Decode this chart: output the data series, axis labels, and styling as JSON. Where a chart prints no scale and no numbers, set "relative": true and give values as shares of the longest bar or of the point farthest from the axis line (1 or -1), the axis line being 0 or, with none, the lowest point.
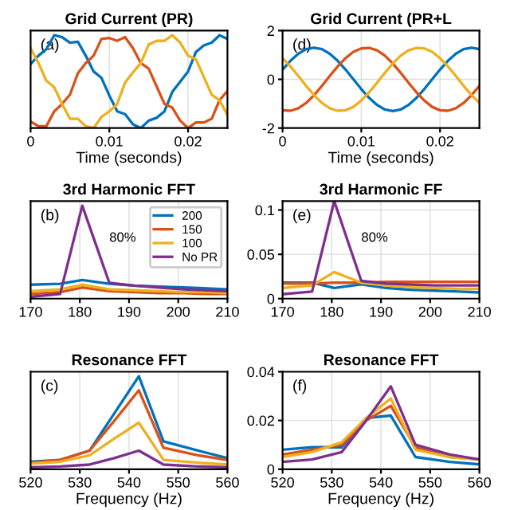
{
  "chart_data": [
    {
      "type": "line",
      "title": "Grid Current (PR)",
      "xlabel": "Time (seconds)",
      "relative": true,
      "annotations": [
        "(a)"
      ],
      "grid": true,
      "x": [
        0,
        0.001,
        0.002,
        0.003,
        0.004,
        0.005,
        0.006,
        0.007,
        0.008,
        0.009,
        0.01,
        0.011,
        0.012,
        0.013,
        0.014,
        0.015,
        0.016,
        0.017,
        0.018,
        0.019,
        0.02,
        0.021,
        0.022,
        0.023,
        0.024,
        0.025
      ],
      "xlim": [
        0,
        0.025
      ],
      "xticks": [
        0,
        0.01,
        0.02
      ],
      "series": [
        {
          "color": "#0072bd",
          "values": [
            0.69,
            0.78,
            0.85,
            1.0,
            0.98,
            0.92,
            0.93,
            0.78,
            0.61,
            0.54,
            0.35,
            0.18,
            0.15,
            0.04,
            0.0,
            0.08,
            0.11,
            0.18,
            0.39,
            0.5,
            0.61,
            0.82,
            0.89,
            0.92,
            1.0,
            0.96
          ]
        },
        {
          "color": "#d95319",
          "values": [
            0.07,
            0.02,
            0.02,
            0.18,
            0.26,
            0.36,
            0.59,
            0.7,
            0.78,
            0.96,
            0.97,
            0.94,
            0.98,
            0.86,
            0.7,
            0.64,
            0.45,
            0.26,
            0.22,
            0.08,
            0.0,
            0.06,
            0.06,
            0.1,
            0.3,
            0.4
          ]
        },
        {
          "color": "#edb120",
          "values": [
            0.86,
            0.7,
            0.51,
            0.44,
            0.26,
            0.1,
            0.1,
            0.02,
            0.0,
            0.12,
            0.18,
            0.26,
            0.49,
            0.6,
            0.7,
            0.9,
            0.94,
            0.94,
            1.0,
            0.92,
            0.78,
            0.74,
            0.55,
            0.36,
            0.3,
            0.14
          ]
        }
      ]
    },
    {
      "type": "line",
      "title": "Grid Current (PR+L",
      "xlabel": "Time (seconds)",
      "annotations": [
        "(d)"
      ],
      "grid": true,
      "x": [
        0,
        0.001,
        0.002,
        0.003,
        0.004,
        0.005,
        0.006,
        0.007,
        0.008,
        0.009,
        0.01,
        0.011,
        0.012,
        0.013,
        0.014,
        0.015,
        0.016,
        0.017,
        0.018,
        0.019,
        0.02,
        0.021,
        0.022,
        0.023,
        0.024,
        0.025
      ],
      "xlim": [
        0,
        0.025
      ],
      "xticks": [
        0,
        0.01,
        0.02
      ],
      "ylim": [
        -2,
        2
      ],
      "yticks": [
        -2,
        0,
        2
      ],
      "series": [
        {
          "color": "#0072bd",
          "values": [
            0.4,
            0.76,
            1.05,
            1.24,
            1.3,
            1.24,
            1.05,
            0.76,
            0.4,
            0,
            -0.4,
            -0.76,
            -1.05,
            -1.24,
            -1.3,
            -1.24,
            -1.05,
            -0.76,
            -0.4,
            0,
            0.4,
            0.76,
            1.05,
            1.24,
            1.3,
            1.24
          ]
        },
        {
          "color": "#d95319",
          "values": [
            -1.27,
            -1.29,
            -1.19,
            -0.97,
            -0.65,
            -0.27,
            0.14,
            0.53,
            0.87,
            1.13,
            1.27,
            1.29,
            1.19,
            0.97,
            0.65,
            0.27,
            -0.14,
            -0.53,
            -0.87,
            -1.13,
            -1.27,
            -1.29,
            -1.19,
            -0.97,
            -0.65,
            -0.27
          ]
        },
        {
          "color": "#edb120",
          "values": [
            0.87,
            0.53,
            0.14,
            -0.27,
            -0.65,
            -0.97,
            -1.19,
            -1.29,
            -1.27,
            -1.13,
            -0.87,
            -0.53,
            -0.14,
            0.27,
            0.65,
            0.97,
            1.19,
            1.29,
            1.27,
            1.13,
            0.87,
            0.53,
            0.14,
            -0.27,
            -0.65,
            -0.97
          ]
        }
      ]
    },
    {
      "type": "line",
      "title": "3rd Harmonic FFT",
      "relative": true,
      "annotations": [
        "(b)",
        "80%"
      ],
      "grid": true,
      "legend": "top right",
      "x": [
        170,
        176,
        180.5,
        186,
        191,
        196,
        201,
        206,
        210
      ],
      "xlim": [
        170,
        210
      ],
      "xticks": [
        170,
        180,
        190,
        200,
        210
      ],
      "series": [
        {
          "name": "200",
          "color": "#0072bd",
          "values": [
            0.15,
            0.16,
            0.2,
            0.16,
            0.14,
            0.13,
            0.12,
            0.11,
            0.1
          ]
        },
        {
          "name": "150",
          "color": "#d95319",
          "values": [
            0.05,
            0.07,
            0.12,
            0.08,
            0.07,
            0.06,
            0.06,
            0.05,
            0.05
          ]
        },
        {
          "name": "100",
          "color": "#edb120",
          "values": [
            0.08,
            0.1,
            0.15,
            0.1,
            0.09,
            0.08,
            0.07,
            0.07,
            0.06
          ]
        },
        {
          "name": "No PR",
          "color": "#7e2f8e",
          "values": [
            0.02,
            0.05,
            1.0,
            0.17,
            0.14,
            0.12,
            0.1,
            0.09,
            0.08
          ]
        }
      ]
    },
    {
      "type": "line",
      "title": "3rd Harmonic FF",
      "annotations": [
        "(e)",
        "80%"
      ],
      "grid": true,
      "x": [
        170,
        176,
        180.5,
        186,
        191,
        196,
        201,
        206,
        210
      ],
      "xlim": [
        170,
        210
      ],
      "xticks": [
        170,
        180,
        190,
        200,
        210
      ],
      "ylim": [
        0,
        0.11
      ],
      "yticks": [
        0,
        0.05,
        0.1
      ],
      "series": [
        {
          "color": "#0072bd",
          "values": [
            0.018,
            0.018,
            0.012,
            0.016,
            0.012,
            0.01,
            0.009,
            0.008,
            0.007
          ]
        },
        {
          "color": "#d95319",
          "values": [
            0.017,
            0.017,
            0.018,
            0.018,
            0.019,
            0.019,
            0.019,
            0.019,
            0.019
          ]
        },
        {
          "color": "#edb120",
          "values": [
            0.012,
            0.015,
            0.03,
            0.018,
            0.015,
            0.013,
            0.012,
            0.011,
            0.011
          ]
        },
        {
          "color": "#7e2f8e",
          "values": [
            0.005,
            0.008,
            0.11,
            0.02,
            0.017,
            0.016,
            0.015,
            0.015,
            0.015
          ]
        }
      ]
    },
    {
      "type": "line",
      "title": "Resonance FFT",
      "xlabel": "Frequency (Hz)",
      "relative": true,
      "annotations": [
        "(c)"
      ],
      "grid": true,
      "x": [
        520,
        526,
        532,
        537,
        542,
        547,
        554,
        560
      ],
      "xlim": [
        520,
        560
      ],
      "xticks": [
        520,
        530,
        540,
        550,
        560
      ],
      "series": [
        {
          "color": "#0072bd",
          "values": [
            0.08,
            0.1,
            0.2,
            0.6,
            1.0,
            0.3,
            0.2,
            0.12
          ]
        },
        {
          "color": "#d95319",
          "values": [
            0.07,
            0.1,
            0.2,
            0.52,
            0.85,
            0.23,
            0.15,
            0.1
          ]
        },
        {
          "color": "#edb120",
          "values": [
            0.06,
            0.08,
            0.15,
            0.33,
            0.5,
            0.1,
            0.07,
            0.05
          ]
        },
        {
          "color": "#7e2f8e",
          "values": [
            0.02,
            0.03,
            0.05,
            0.12,
            0.2,
            0.05,
            0.03,
            0.02
          ]
        }
      ]
    },
    {
      "type": "line",
      "title": "Resonance FFT",
      "xlabel": "Frequency (Hz)",
      "annotations": [
        "(f)"
      ],
      "grid": true,
      "x": [
        520,
        526,
        532,
        537,
        542,
        547,
        554,
        560
      ],
      "xlim": [
        520,
        560
      ],
      "xticks": [
        520,
        530,
        540,
        550,
        560
      ],
      "ylim": [
        0,
        0.04
      ],
      "yticks": [
        0,
        0.02,
        0.04
      ],
      "series": [
        {
          "color": "#0072bd",
          "values": [
            0.008,
            0.009,
            0.009,
            0.021,
            0.022,
            0.005,
            0.003,
            0.002
          ]
        },
        {
          "color": "#d95319",
          "values": [
            0.006,
            0.008,
            0.01,
            0.02,
            0.026,
            0.009,
            0.005,
            0.004
          ]
        },
        {
          "color": "#edb120",
          "values": [
            0.005,
            0.007,
            0.011,
            0.021,
            0.029,
            0.008,
            0.005,
            0.004
          ]
        },
        {
          "color": "#7e2f8e",
          "values": [
            0.003,
            0.004,
            0.007,
            0.02,
            0.034,
            0.01,
            0.006,
            0.004
          ]
        }
      ]
    }
  ]
}
